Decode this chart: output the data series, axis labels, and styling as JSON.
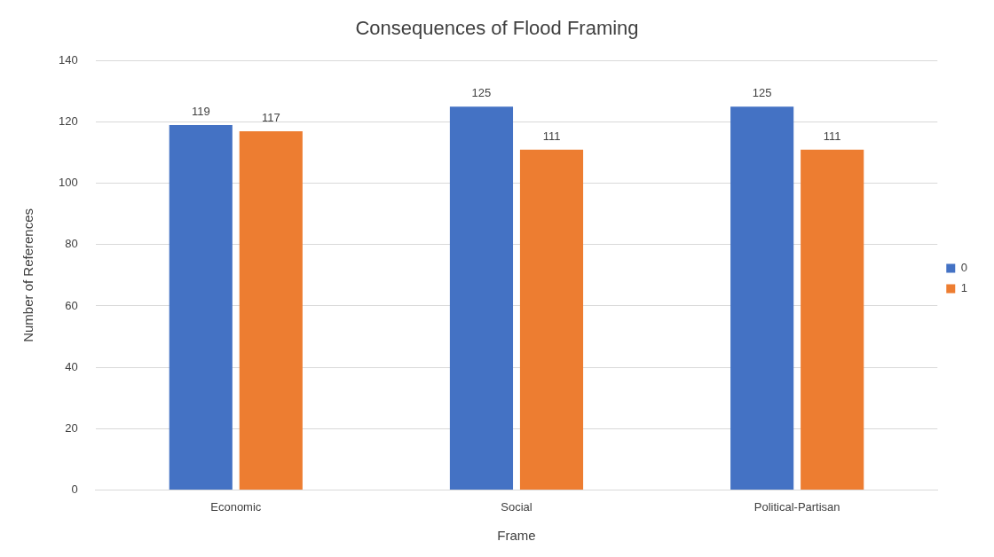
{
  "chart_data": {
    "type": "bar",
    "title": "Consequences of Flood Framing",
    "xlabel": "Frame",
    "ylabel": "Number of References",
    "categories": [
      "Economic",
      "Social",
      "Political-Partisan"
    ],
    "series": [
      {
        "name": "0",
        "color": "#4472c4",
        "values": [
          119,
          125,
          125
        ]
      },
      {
        "name": "1",
        "color": "#ed7d31",
        "values": [
          117,
          111,
          111
        ]
      }
    ],
    "ylim": [
      0,
      140
    ],
    "yticks": [
      0,
      20,
      40,
      60,
      80,
      100,
      120,
      140
    ],
    "grid": "y",
    "legend": "right",
    "data_labels": true
  }
}
